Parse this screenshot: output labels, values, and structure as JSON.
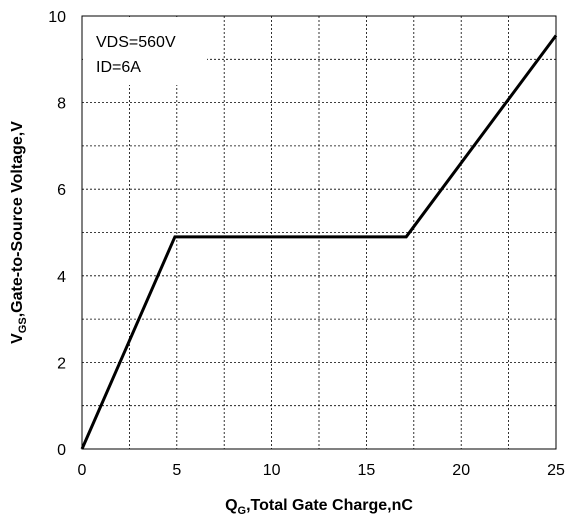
{
  "chart_data": {
    "type": "line",
    "title": "",
    "xlabel_main": "Q",
    "xlabel_sub": "G",
    "xlabel_rest": ",Total Gate Charge,nC",
    "ylabel_main": "V",
    "ylabel_sub": "GS",
    "ylabel_rest": ",Gate-to-Source Voltage,V",
    "xlim": [
      0,
      25
    ],
    "ylim": [
      0,
      10
    ],
    "x_ticks": [
      0,
      5,
      10,
      15,
      20,
      25
    ],
    "y_ticks": [
      0,
      2,
      4,
      6,
      8,
      10
    ],
    "x_grid_step": 2.5,
    "y_grid_step": 1,
    "grid": true,
    "annotations": [
      "VDS=560V",
      "ID=6A"
    ],
    "annotation_position": "top-left",
    "series": [
      {
        "x": [
          0,
          4.9,
          17.1,
          25
        ],
        "y": [
          0,
          4.9,
          4.9,
          9.55
        ]
      }
    ]
  }
}
